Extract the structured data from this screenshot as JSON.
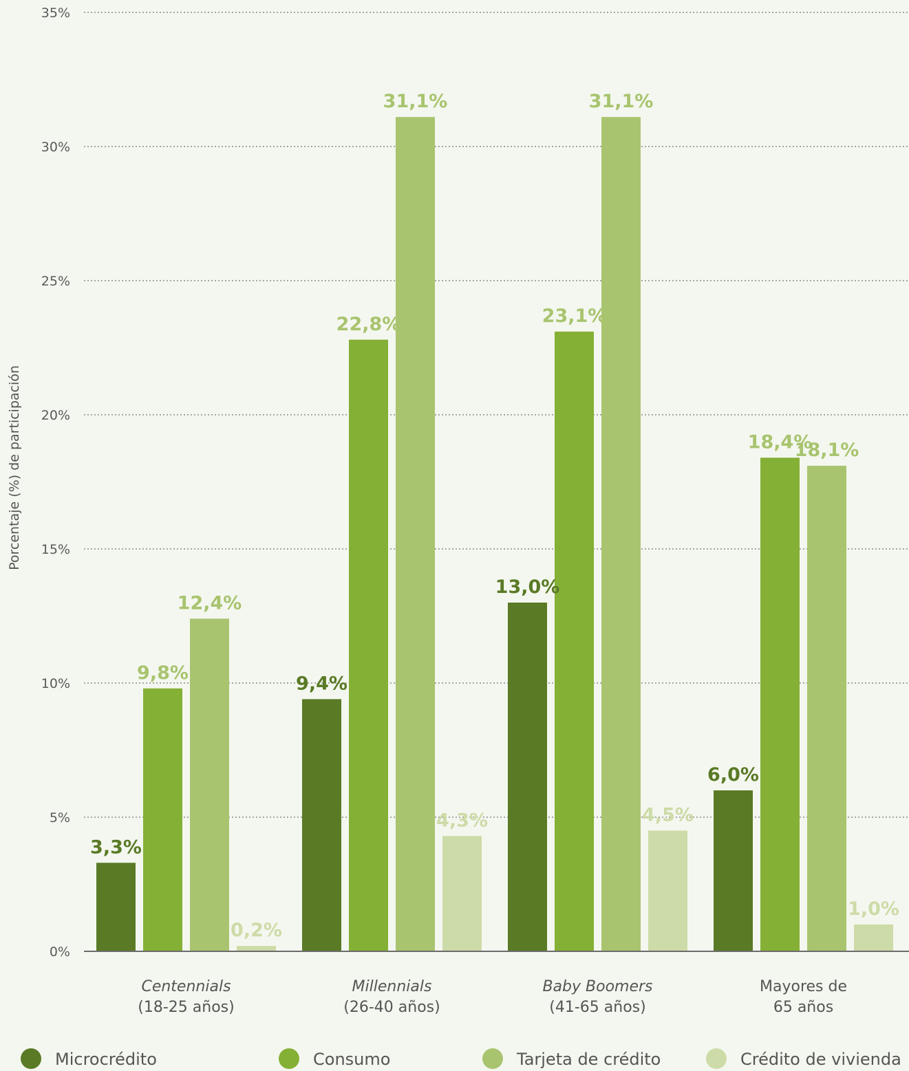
{
  "chart_data": {
    "type": "bar",
    "ylabel": "Porcentaje (%) de participación",
    "ylim": [
      0,
      35
    ],
    "yticks": [
      0,
      5,
      10,
      15,
      20,
      25,
      30,
      35
    ],
    "ytick_labels": [
      "0%",
      "5%",
      "10%",
      "15%",
      "20%",
      "25%",
      "30%",
      "35%"
    ],
    "grid": true,
    "legend_position": "bottom",
    "categories": [
      {
        "line1": "Centennials",
        "line2": "(18-25 años)",
        "italic": true
      },
      {
        "line1": "Millennials",
        "line2": "(26-40 años)",
        "italic": true
      },
      {
        "line1": "Baby Boomers",
        "line2": "(41-65 años)",
        "italic": true
      },
      {
        "line1": "Mayores de",
        "line2": "65 años",
        "italic": false
      }
    ],
    "series": [
      {
        "name": "Microcrédito",
        "color": "#5a7a26",
        "label_color": "#5a7a26",
        "values": [
          3.3,
          9.4,
          13.0,
          6.0
        ],
        "labels": [
          "3,3%",
          "9,4%",
          "13,0%",
          "6,0%"
        ]
      },
      {
        "name": "Consumo",
        "color": "#84b035",
        "label_color": "#a8c46f",
        "values": [
          9.8,
          22.8,
          23.1,
          18.4
        ],
        "labels": [
          "9,8%",
          "22,8%",
          "23,1%",
          "18,4%"
        ]
      },
      {
        "name": "Tarjeta de crédito",
        "color": "#a9c46f",
        "label_color": "#a8c46f",
        "values": [
          12.4,
          31.1,
          31.1,
          18.1
        ],
        "labels": [
          "12,4%",
          "31,1%",
          "31,1%",
          "18,1%"
        ]
      },
      {
        "name": "Crédito de vivienda",
        "color": "#cddba8",
        "label_color": "#cddba8",
        "values": [
          0.2,
          4.3,
          4.5,
          1.0
        ],
        "labels": [
          "0,2%",
          "4,3%",
          "4,5%",
          "1,0%"
        ]
      }
    ],
    "colors": {
      "background": "#f4f7ef",
      "grid": "#8a8a8a",
      "axis": "#6b6b6b"
    }
  }
}
